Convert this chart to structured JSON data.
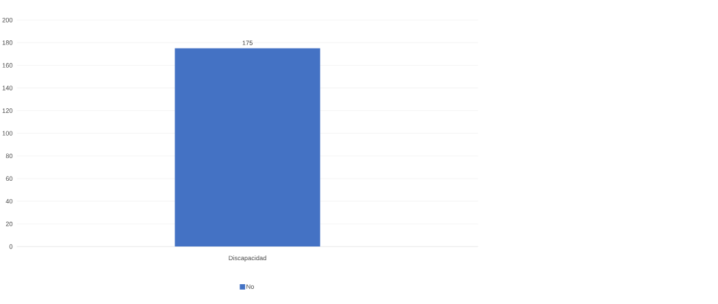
{
  "chart_data": {
    "type": "bar",
    "categories": [
      "Discapacidad"
    ],
    "series": [
      {
        "name": "No",
        "color": "#4472c4",
        "values": [
          175
        ]
      }
    ],
    "ylim": [
      0,
      200
    ],
    "yticks": [
      0,
      20,
      40,
      60,
      80,
      100,
      120,
      140,
      160,
      180,
      200
    ],
    "grid": "y",
    "legend": "bottom",
    "data_labels": true
  }
}
